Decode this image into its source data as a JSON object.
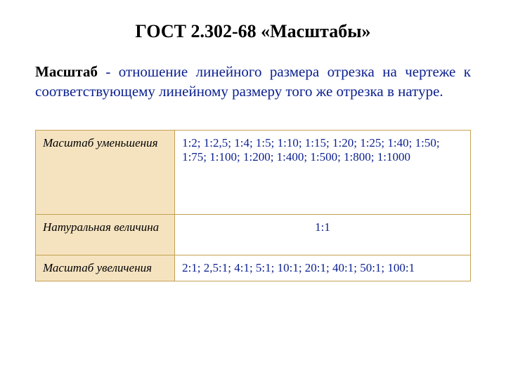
{
  "title": "ГОСТ 2.302-68 «Масштабы»",
  "definition": {
    "term": "Масштаб",
    "separator": " - ",
    "body": "отношение линейного размера отрезка на чертеже к соответствующему линейному размеру того же  отрезка в натуре."
  },
  "table": {
    "rows": [
      {
        "label": "Масштаб уменьшения",
        "value": "1:2;  1:2,5;  1:4;  1:5;  1:10;  1:15;  1:20;  1:25;  1:40; 1:50;  1:75;  1:100;  1:200;  1:400;  1:500;  1:800; 1:1000",
        "centered": false
      },
      {
        "label": "Натуральная величина",
        "value": "1:1",
        "centered": true
      },
      {
        "label": "Масштаб увеличения",
        "value": "2:1;  2,5:1;  4:1;  5:1;  10:1;  20:1;  40:1;  50:1;  100:1",
        "centered": false
      }
    ]
  },
  "colors": {
    "title_color": "#000000",
    "definition_term_color": "#000000",
    "definition_body_color": "#0a1f8f",
    "table_border": "#c4a050",
    "table_label_bg": "#f5e3c0",
    "table_value_color": "#0a1f8f",
    "background": "#ffffff"
  },
  "typography": {
    "font_family": "Times New Roman",
    "title_fontsize": 26,
    "title_weight": "bold",
    "definition_fontsize": 21,
    "table_fontsize": 17
  }
}
